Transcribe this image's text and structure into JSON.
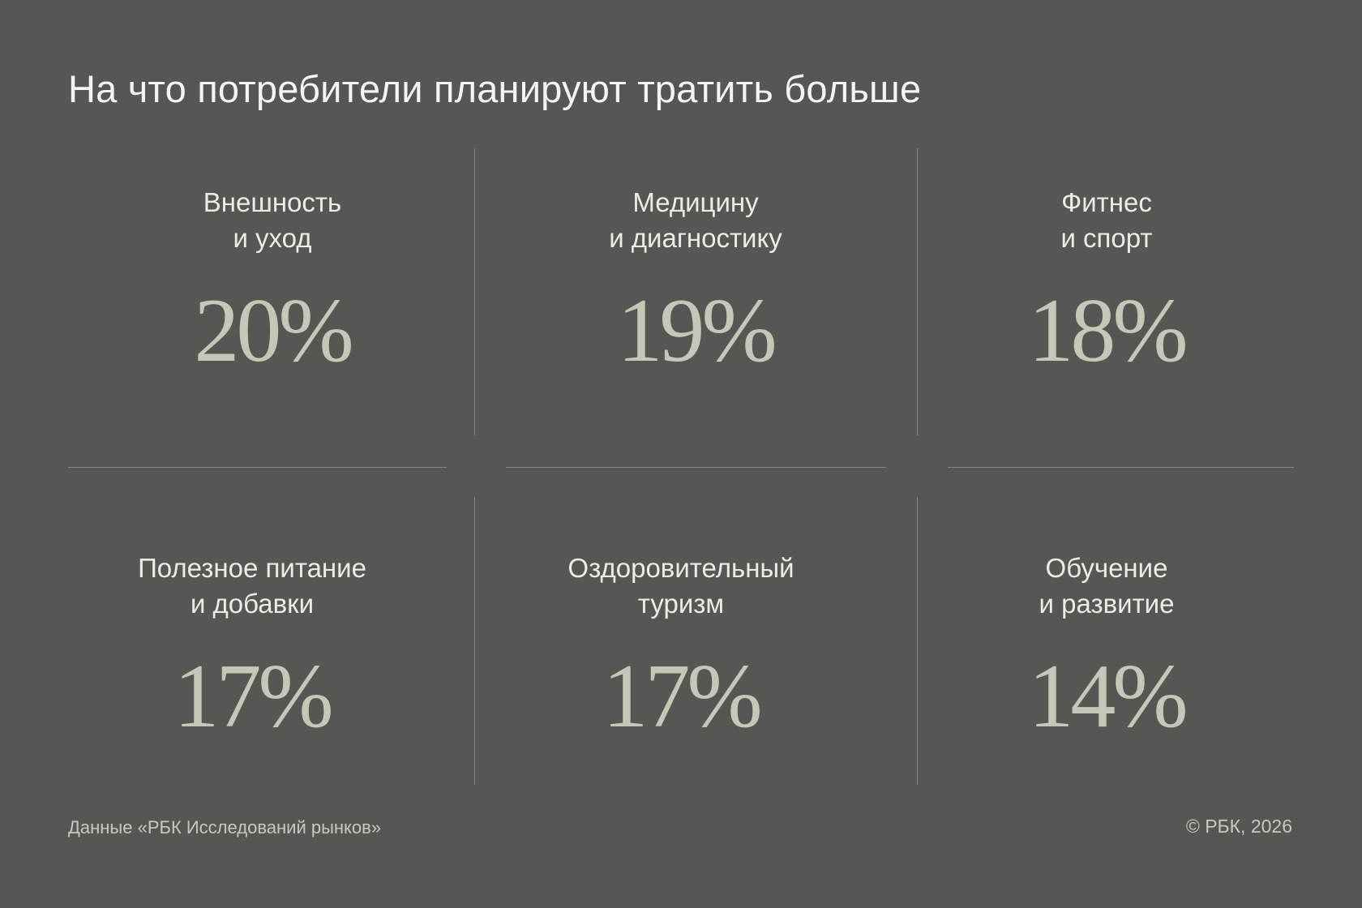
{
  "title": "На что потребители планируют тратить больше",
  "chart_data": {
    "type": "table",
    "title": "На что потребители планируют тратить больше",
    "unit": "%",
    "categories": [
      "Внешность и уход",
      "Медицину и диагностику",
      "Фитнес и спорт",
      "Полезное питание и добавки",
      "Оздоровительный туризм",
      "Обучение и развитие"
    ],
    "values": [
      20,
      19,
      18,
      17,
      17,
      14
    ]
  },
  "items": [
    {
      "label": "Внешность\nи уход",
      "value_text": "20%"
    },
    {
      "label": "Медицину\nи диагностику",
      "value_text": "19%"
    },
    {
      "label": "Фитнес\nи спорт",
      "value_text": "18%"
    },
    {
      "label": "Полезное питание\nи добавки",
      "value_text": "17%"
    },
    {
      "label": "Оздоровительный\nтуризм",
      "value_text": "17%"
    },
    {
      "label": "Обучение\nи развитие",
      "value_text": "14%"
    }
  ],
  "footer": {
    "source": "Данные «РБК Исследований рынков»",
    "copyright": "© РБК, 2026"
  },
  "colors": {
    "background": "#545752",
    "value": "#c5c8b8",
    "divider": "#83877f"
  }
}
